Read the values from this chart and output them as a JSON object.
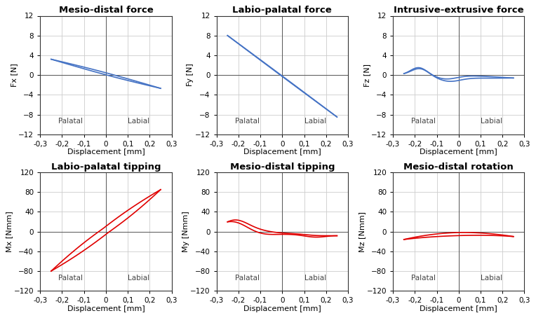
{
  "titles": [
    "Mesio-distal force",
    "Labio-palatal force",
    "Intrusive-extrusive force",
    "Labio-palatal tipping",
    "Mesio-distal tipping",
    "Mesio-distal rotation"
  ],
  "ylabels": [
    "Fx [N]",
    "Fy [N]",
    "Fz [N]",
    "Mx [Nmm]",
    "My [Nmm]",
    "Mz [Nmm]"
  ],
  "xlabel": "Displacement [mm]",
  "xlim": [
    -0.3,
    0.3
  ],
  "xticks": [
    -0.3,
    -0.2,
    -0.1,
    0.0,
    0.1,
    0.2,
    0.3
  ],
  "xticklabels": [
    "-0,3",
    "-0,2",
    "-0,1",
    "0",
    "0,1",
    "0,2",
    "0,3"
  ],
  "force_ylim": [
    -12,
    12
  ],
  "force_yticks": [
    -12,
    -8,
    -4,
    0,
    4,
    8,
    12
  ],
  "moment_ylim": [
    -120,
    120
  ],
  "moment_yticks": [
    -120,
    -80,
    -40,
    0,
    40,
    80,
    120
  ],
  "blue_color": "#4472C4",
  "red_color": "#E00000",
  "grid_color": "#CCCCCC",
  "text_fontsize": 7.5,
  "title_fontsize": 9.5,
  "label_fontsize": 8,
  "tick_fontsize": 7.5,
  "panel_background": "#FFFFFF",
  "fig_background": "#FFFFFF"
}
